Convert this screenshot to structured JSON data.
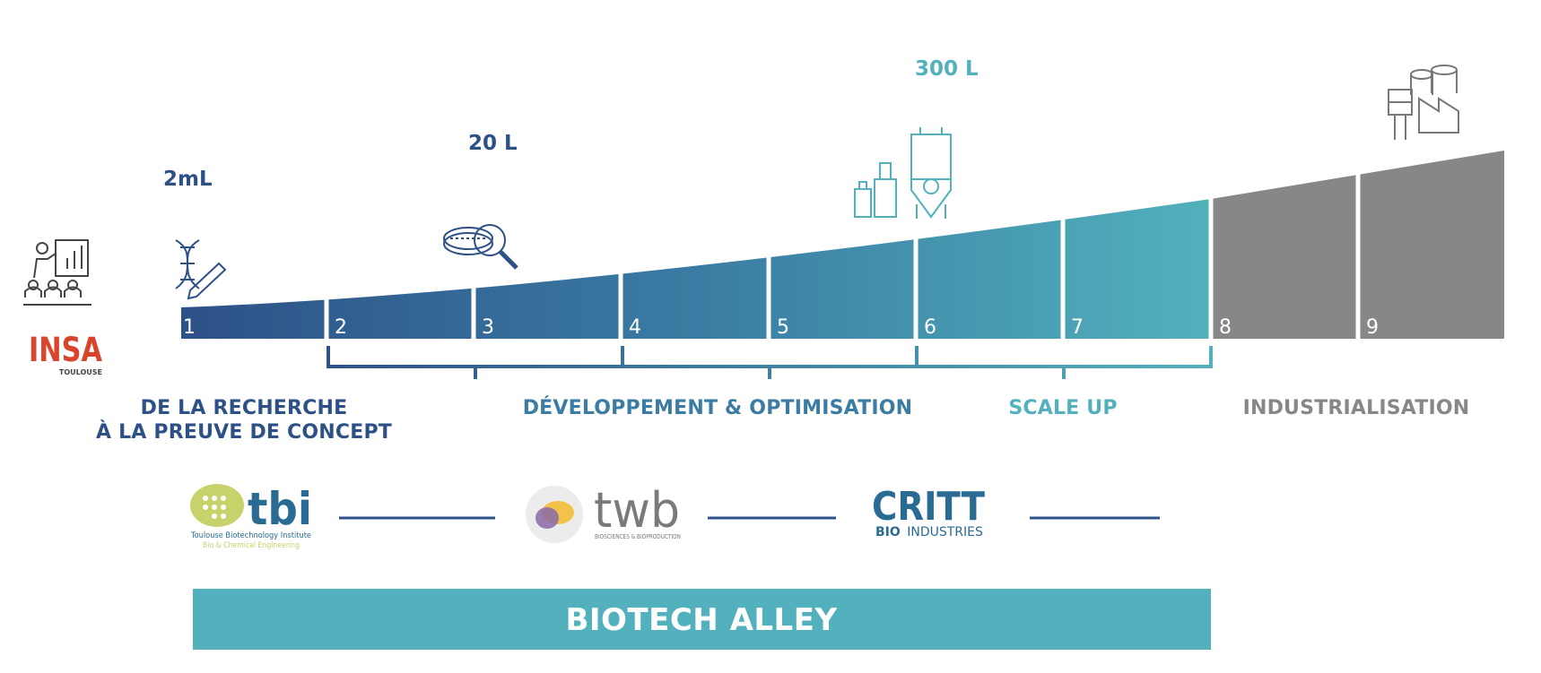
{
  "volumes": {
    "v1": "2mL",
    "v2": "20 L",
    "v3": "300 L"
  },
  "levels": [
    "1",
    "2",
    "3",
    "4",
    "5",
    "6",
    "7",
    "8",
    "9"
  ],
  "phases": {
    "research_line1": "DE LA RECHERCHE",
    "research_line2": "À LA PREUVE DE CONCEPT",
    "development": "DÉVELOPPEMENT & OPTIMISATION",
    "scaleup": "SCALE UP",
    "industrialisation": "INDUSTRIALISATION"
  },
  "logos": {
    "insa": {
      "name": "INSA",
      "sub": "TOULOUSE"
    },
    "tbi": {
      "name": "tbi",
      "line1": "Toulouse Biotechnology Institute",
      "line2": "Bio & Chemical Engineering"
    },
    "twb": {
      "name": "twb",
      "sub": "BIOSCIENCES & BIOPRODUCTION"
    },
    "critt": {
      "name": "CRITT",
      "sub_bold": "BIO",
      "sub": "INDUSTRIES"
    }
  },
  "banner": {
    "label": "BIOTECH ALLEY"
  },
  "icons": [
    "presentation-icon",
    "dna-pencil-icon",
    "petri-dish-magnifier-icon",
    "bioreactor-bottles-icon",
    "factory-icon"
  ],
  "colors": {
    "dark_blue": "#2d5187",
    "mid_blue": "#3a7ca3",
    "teal": "#52b1bc",
    "gray": "#878787",
    "insa_red": "#d9442c",
    "tbi_green": "#c7d36a"
  }
}
